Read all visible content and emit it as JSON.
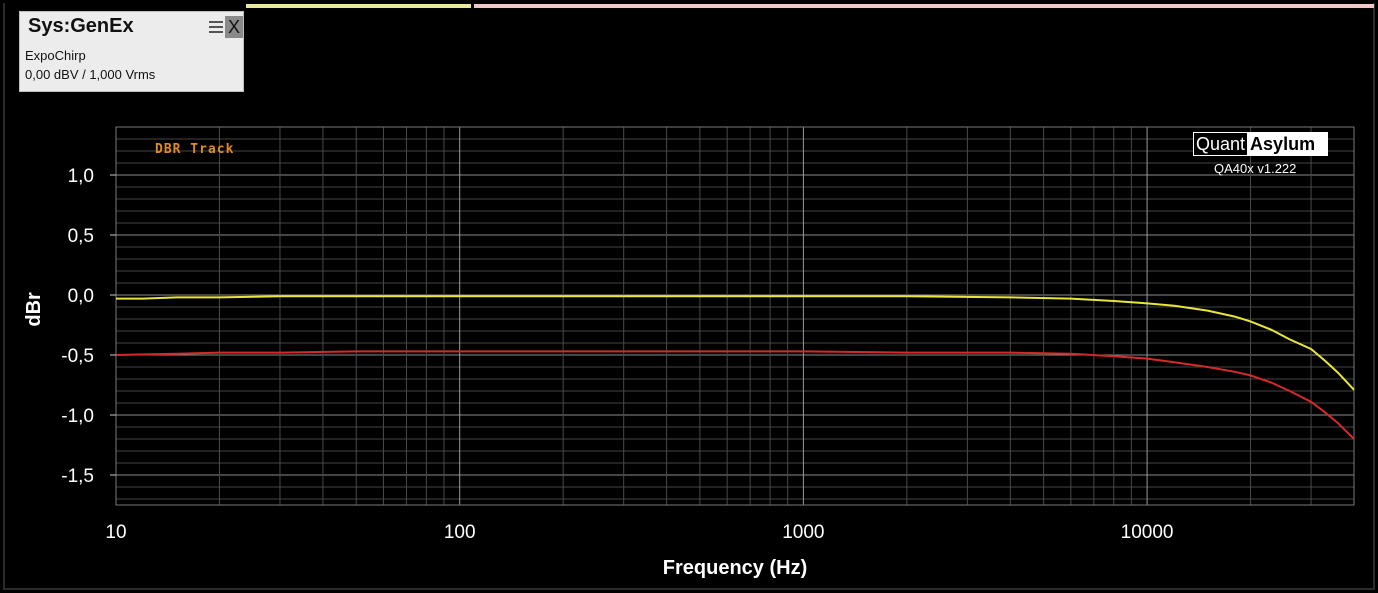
{
  "generator_panel": {
    "title": "Sys:GenEx",
    "close_label": "X",
    "waveform": "ExpoChirp",
    "level": "0,00 dBV / 1,000 Vrms"
  },
  "top_strip_colors": [
    "#e8e8a0",
    "#f0c8c8"
  ],
  "logo": {
    "left_text": "Quant",
    "right_text": "Asylum",
    "version": "QA40x v1.222"
  },
  "chart_data": {
    "type": "line",
    "annotation": "DBR Track",
    "xlabel": "Frequency (Hz)",
    "ylabel": "dBr",
    "x_scale": "log",
    "xlim": [
      10,
      40000
    ],
    "ylim": [
      -1.75,
      1.4
    ],
    "x_ticks": [
      {
        "value": 10,
        "label": "10"
      },
      {
        "value": 100,
        "label": "100"
      },
      {
        "value": 1000,
        "label": "1000"
      },
      {
        "value": 10000,
        "label": "10000"
      }
    ],
    "y_ticks": [
      {
        "value": 1.0,
        "label": "1,0"
      },
      {
        "value": 0.5,
        "label": "0,5"
      },
      {
        "value": 0.0,
        "label": "0,0"
      },
      {
        "value": -0.5,
        "label": "-0,5"
      },
      {
        "value": -1.0,
        "label": "-1,0"
      },
      {
        "value": -1.5,
        "label": "-1,5"
      }
    ],
    "grid": true,
    "background": "#000000",
    "series": [
      {
        "color": "#e6e63c",
        "x": [
          10,
          12,
          15,
          20,
          30,
          50,
          100,
          200,
          500,
          1000,
          2000,
          4000,
          6000,
          8000,
          10000,
          12000,
          15000,
          18000,
          20000,
          23000,
          26000,
          30000,
          33000,
          36000,
          40000
        ],
        "y": [
          -0.03,
          -0.03,
          -0.02,
          -0.02,
          -0.01,
          -0.01,
          -0.01,
          -0.01,
          -0.01,
          -0.01,
          -0.01,
          -0.02,
          -0.03,
          -0.05,
          -0.07,
          -0.09,
          -0.13,
          -0.18,
          -0.22,
          -0.29,
          -0.37,
          -0.45,
          -0.55,
          -0.65,
          -0.79
        ]
      },
      {
        "color": "#d42a2a",
        "x": [
          10,
          15,
          20,
          30,
          50,
          100,
          200,
          500,
          1000,
          2000,
          4000,
          6000,
          8000,
          10000,
          12000,
          15000,
          18000,
          20000,
          23000,
          26000,
          30000,
          33000,
          36000,
          40000
        ],
        "y": [
          -0.5,
          -0.49,
          -0.48,
          -0.48,
          -0.47,
          -0.47,
          -0.47,
          -0.47,
          -0.47,
          -0.48,
          -0.48,
          -0.49,
          -0.51,
          -0.53,
          -0.56,
          -0.6,
          -0.64,
          -0.67,
          -0.73,
          -0.8,
          -0.89,
          -0.98,
          -1.07,
          -1.2
        ]
      }
    ]
  }
}
